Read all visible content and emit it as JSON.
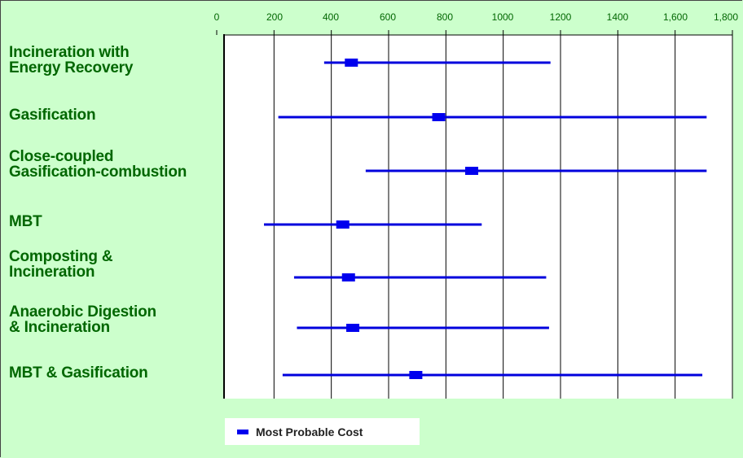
{
  "chart_data": {
    "type": "range",
    "xlim": [
      0,
      1800
    ],
    "ticks": [
      "0",
      "200",
      "400",
      "600",
      "800",
      "1000",
      "1200",
      "1400",
      "1,600",
      "1,800"
    ],
    "tick_values": [
      0,
      200,
      400,
      600,
      800,
      1000,
      1200,
      1400,
      1600,
      1800
    ],
    "grid": "vertical",
    "legend_position": "bottom-left",
    "categories": [
      "Incineration with\nEnergy Recovery",
      "Gasification",
      "Close-coupled\nGasification-combustion",
      "MBT",
      "Composting &\nIncineration",
      "Anaerobic Digestion\n& Incineration",
      "MBT & Gasification"
    ],
    "series": [
      {
        "name": "Most Probable Cost",
        "low": [
          375,
          215,
          520,
          165,
          270,
          280,
          230
        ],
        "high": [
          1165,
          1710,
          1710,
          925,
          1150,
          1160,
          1695
        ],
        "most_probable": [
          470,
          775,
          890,
          440,
          460,
          475,
          695
        ]
      }
    ],
    "colors": {
      "range_line": "#0000dd",
      "marker": "#0000ee",
      "background": "#ccffcc",
      "plot_area": "#ffffff",
      "text": "#006600"
    }
  },
  "legend": {
    "label": "Most Probable Cost"
  }
}
